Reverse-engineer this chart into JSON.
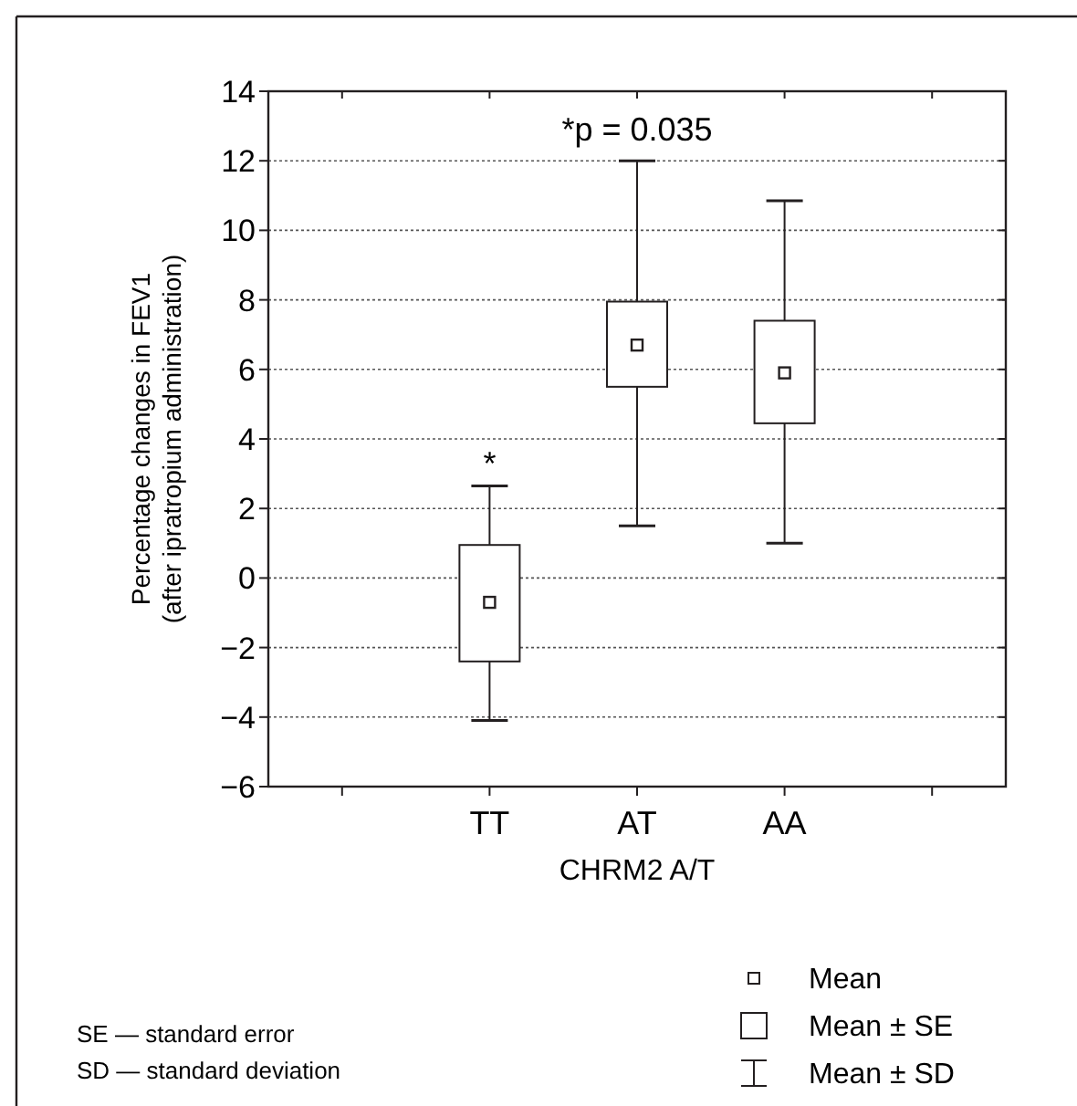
{
  "chart_data": {
    "type": "box",
    "xlabel": "CHRM2 A/T",
    "ylabel": "Percentage changes in FEV1\n(after ipratropium administration)",
    "categories": [
      null,
      "TT",
      "AT",
      "AA",
      null
    ],
    "boxes": [
      null,
      {
        "low": -4.1,
        "q1": -2.4,
        "median": -0.7,
        "q3": 0.95,
        "high": 2.65
      },
      {
        "low": 1.5,
        "q1": 5.5,
        "median": 6.7,
        "q3": 7.95,
        "high": 12.0
      },
      {
        "low": 1.0,
        "q1": 4.45,
        "median": 5.9,
        "q3": 7.4,
        "high": 10.85
      },
      null
    ],
    "color": "#231f20",
    "ylim": [
      -6,
      14
    ],
    "yticks": [
      -6,
      -4,
      -2,
      0,
      2,
      4,
      6,
      8,
      10,
      12,
      14
    ],
    "grid": "y",
    "annotations": [
      {
        "text": "*",
        "x": "TT",
        "y": 2.65
      },
      "*p = 0.035",
      "SE — standard error",
      "SD — standard deviation",
      "Mean",
      "Mean ± SE",
      "Mean ± SD"
    ]
  }
}
